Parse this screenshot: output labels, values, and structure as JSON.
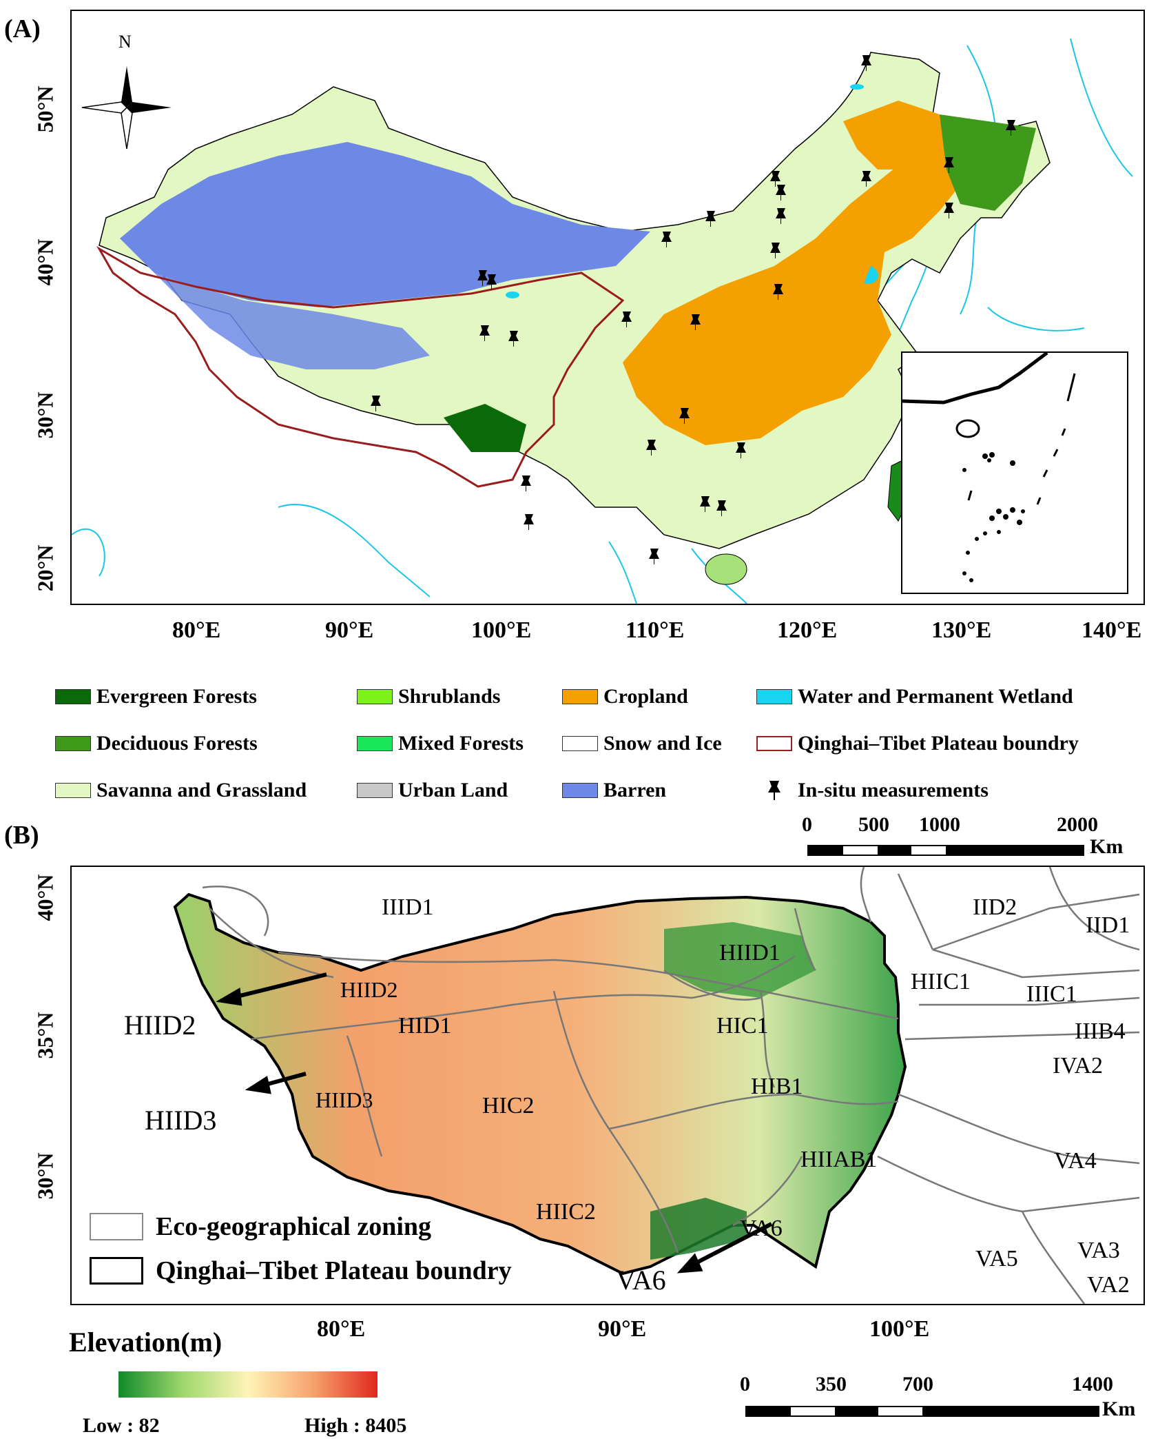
{
  "panel_a": {
    "label": "(A)",
    "north_label": "N",
    "lat_labels": [
      "50°N",
      "40°N",
      "30°N",
      "20°N"
    ],
    "lon_labels": [
      "80°E",
      "90°E",
      "100°E",
      "110°E",
      "120°E",
      "130°E",
      "140°E"
    ],
    "legend": [
      {
        "label": "Evergreen Forests",
        "color": "#0a6a0a",
        "kind": "fill"
      },
      {
        "label": "Shrublands",
        "color": "#7cf21a",
        "kind": "fill"
      },
      {
        "label": "Cropland",
        "color": "#f4a000",
        "kind": "fill"
      },
      {
        "label": "Water and Permanent Wetland",
        "color": "#19d4f0",
        "kind": "fill"
      },
      {
        "label": "Deciduous Forests",
        "color": "#3f9a1c",
        "kind": "fill"
      },
      {
        "label": "Mixed Forests",
        "color": "#1ae65a",
        "kind": "fill"
      },
      {
        "label": "Snow and Ice",
        "color": "#ffffff",
        "kind": "fill"
      },
      {
        "label": "Qinghai–Tibet Plateau boundry",
        "color": "#9b1c1c",
        "kind": "line"
      },
      {
        "label": "Savanna and Grassland",
        "color": "#e3f7c2",
        "kind": "fill"
      },
      {
        "label": "Urban Land",
        "color": "#c8c8c8",
        "kind": "fill"
      },
      {
        "label": "Barren",
        "color": "#6e88e6",
        "kind": "fill"
      },
      {
        "label": "In-situ measurements",
        "color": "#000000",
        "kind": "pin"
      }
    ],
    "scale": {
      "ticks": [
        "0",
        "500",
        "1000",
        "2000"
      ],
      "unit": "Km"
    }
  },
  "panel_b": {
    "label": "(B)",
    "lat_labels": [
      "40°N",
      "35°N",
      "30°N"
    ],
    "lon_labels": [
      "80°E",
      "90°E",
      "100°E"
    ],
    "zones": [
      "IIID1",
      "IID2",
      "IID1",
      "HIID1",
      "HIIC1",
      "IIIC1",
      "HIID2",
      "HIID2",
      "HID1",
      "HIC1",
      "IIIB4",
      "IVA2",
      "HIID3",
      "HIID3",
      "HIC2",
      "HIB1",
      "HIIAB1",
      "VA4",
      "HIIC2",
      "VA6",
      "VA6",
      "VA5",
      "VA3",
      "VA2"
    ],
    "legend": [
      "Eco-geographical zoning",
      "Qinghai–Tibet Plateau boundry"
    ],
    "elevation": {
      "title": "Elevation(m)",
      "low": "Low : 82",
      "high": "High : 8405",
      "colors": [
        "#0f8a2a",
        "#9fd86c",
        "#fff4b8",
        "#f7a36c",
        "#e0281e"
      ]
    },
    "scale": {
      "ticks": [
        "0",
        "350",
        "700",
        "1400"
      ],
      "unit": "Km"
    }
  }
}
